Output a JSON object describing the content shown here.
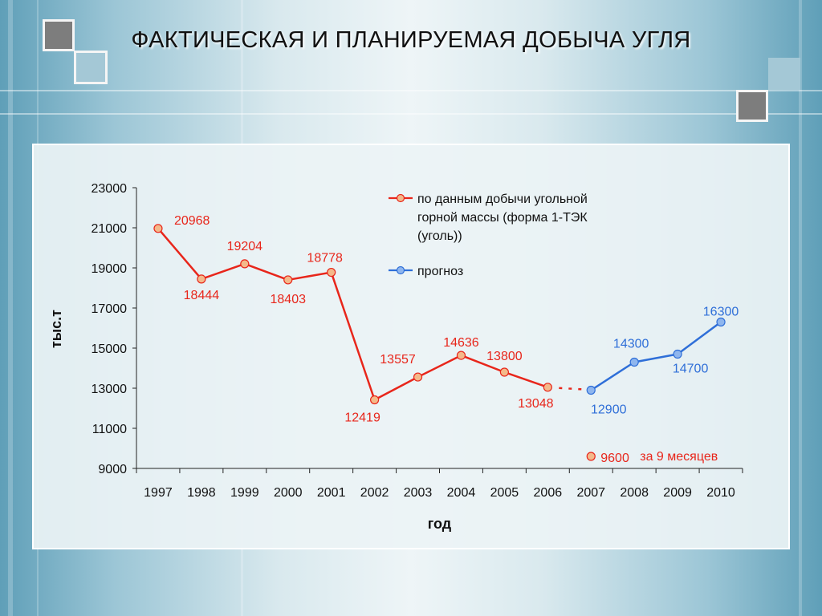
{
  "title": "ФАКТИЧЕСКАЯ И ПЛАНИРУЕМАЯ ДОБЫЧА УГЛЯ",
  "colors": {
    "actual": "#e8261b",
    "forecast": "#2f6fd8",
    "marker_fill": "#f4b98a"
  },
  "chart_data": {
    "type": "line",
    "title": "",
    "xlabel": "год",
    "ylabel": "тыс.т",
    "ylim": [
      9000,
      23000
    ],
    "yticks": [
      "9000",
      "11000",
      "13000",
      "15000",
      "17000",
      "19000",
      "21000",
      "23000"
    ],
    "categories": [
      "1997",
      "1998",
      "1999",
      "2000",
      "2001",
      "2002",
      "2003",
      "2004",
      "2005",
      "2006",
      "2007",
      "2008",
      "2009",
      "2010"
    ],
    "series": [
      {
        "name": "по данным добычи угольной горной массы (форма 1-ТЭК (уголь))",
        "legend_lines": [
          "по данным добычи угольной",
          "горной массы (форма 1-ТЭК",
          "(уголь))"
        ],
        "color": "#e8261b",
        "x": [
          "1997",
          "1998",
          "1999",
          "2000",
          "2001",
          "2002",
          "2003",
          "2004",
          "2005",
          "2006"
        ],
        "values": [
          20968,
          18444,
          19204,
          18403,
          18778,
          12419,
          13557,
          14636,
          13800,
          13048
        ],
        "labels": [
          "20968",
          "18444",
          "19204",
          "18403",
          "18778",
          "12419",
          "13557",
          "14636",
          "13800",
          "13048"
        ]
      },
      {
        "name": "прогноз",
        "legend_lines": [
          "прогноз"
        ],
        "color": "#2f6fd8",
        "x": [
          "2007",
          "2008",
          "2009",
          "2010"
        ],
        "values": [
          12900,
          14300,
          14700,
          16300
        ],
        "labels": [
          "12900",
          "14300",
          "14700",
          "16300"
        ]
      }
    ],
    "annotation": {
      "x": "2007",
      "value": 9600,
      "label": "9600",
      "note": "за 9 месяцев"
    },
    "legend_position": "top-right",
    "grid": false
  }
}
